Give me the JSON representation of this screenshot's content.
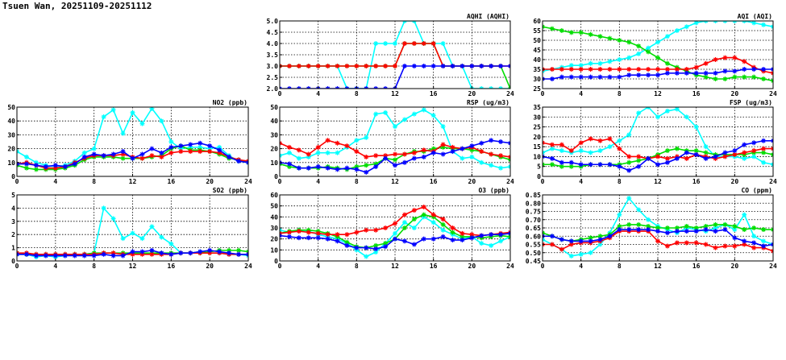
{
  "page": {
    "title": "Tsuen Wan, 20251109-20251112"
  },
  "series_colors": {
    "a": "#00ffff",
    "b": "#00dd00",
    "c": "#ff0000",
    "d": "#0000ff"
  },
  "chart_data": [
    {
      "id": "aqhi",
      "type": "line",
      "title": "AQHI (AQHI)",
      "xlim": [
        0,
        24
      ],
      "xticks": [
        0,
        4,
        8,
        12,
        16,
        20,
        24
      ],
      "ylim": [
        2,
        5
      ],
      "yticks": [
        2.0,
        2.5,
        3.0,
        3.5,
        4.0,
        4.5,
        5.0
      ],
      "ydec": 1,
      "grid": true,
      "series": [
        {
          "color_key": "a",
          "values": [
            3,
            3,
            3,
            3,
            3,
            3,
            3,
            2,
            2,
            2,
            4,
            4,
            4,
            5,
            5,
            4,
            4,
            4,
            3,
            3,
            2,
            2,
            2,
            2,
            2
          ]
        },
        {
          "color_key": "b",
          "values": [
            3,
            3,
            3,
            3,
            3,
            3,
            3,
            3,
            3,
            3,
            3,
            3,
            3,
            4,
            4,
            4,
            4,
            3,
            3,
            3,
            3,
            3,
            3,
            3,
            2
          ]
        },
        {
          "color_key": "c",
          "values": [
            3,
            3,
            3,
            3,
            3,
            3,
            3,
            3,
            3,
            3,
            3,
            3,
            3,
            4,
            4,
            4,
            4,
            3,
            3,
            3,
            3,
            3,
            3,
            3,
            3
          ]
        },
        {
          "color_key": "d",
          "values": [
            2,
            2,
            2,
            2,
            2,
            2,
            2,
            2,
            2,
            2,
            2,
            2,
            2,
            3,
            3,
            3,
            3,
            3,
            3,
            3,
            3,
            3,
            3,
            3,
            3
          ]
        }
      ]
    },
    {
      "id": "aqi",
      "type": "line",
      "title": "AQI (AQI)",
      "xlim": [
        0,
        24
      ],
      "xticks": [
        0,
        4,
        8,
        12,
        16,
        20,
        24
      ],
      "ylim": [
        25,
        60
      ],
      "yticks": [
        25,
        30,
        35,
        40,
        45,
        50,
        55,
        60
      ],
      "ydec": 0,
      "grid": true,
      "series": [
        {
          "color_key": "a",
          "values": [
            34,
            35,
            36,
            37,
            37,
            38,
            38,
            39,
            40,
            41,
            43,
            46,
            49,
            52,
            55,
            57,
            59,
            60,
            60,
            60,
            60,
            60,
            59,
            58,
            57
          ]
        },
        {
          "color_key": "b",
          "values": [
            57,
            56,
            55,
            54,
            54,
            53,
            52,
            51,
            50,
            49,
            47,
            44,
            41,
            38,
            36,
            34,
            32,
            31,
            30,
            30,
            31,
            31,
            31,
            30,
            29
          ]
        },
        {
          "color_key": "c",
          "values": [
            35,
            35,
            35,
            35,
            35,
            35,
            35,
            35,
            35,
            35,
            35,
            35,
            35,
            35,
            35,
            35,
            36,
            38,
            40,
            41,
            41,
            39,
            36,
            34,
            33
          ]
        },
        {
          "color_key": "d",
          "values": [
            30,
            30,
            31,
            31,
            31,
            31,
            31,
            31,
            31,
            32,
            32,
            32,
            32,
            33,
            33,
            33,
            33,
            33,
            33,
            34,
            34,
            35,
            35,
            35,
            35
          ]
        }
      ]
    },
    {
      "id": "no2",
      "type": "line",
      "title": "NO2 (ppb)",
      "xlim": [
        0,
        24
      ],
      "xticks": [
        0,
        4,
        8,
        12,
        16,
        20,
        24
      ],
      "ylim": [
        0,
        50
      ],
      "yticks": [
        0,
        10,
        20,
        30,
        40,
        50
      ],
      "ydec": 0,
      "grid": true,
      "series": [
        {
          "color_key": "a",
          "values": [
            18,
            14,
            10,
            8,
            7,
            8,
            11,
            17,
            20,
            43,
            48,
            31,
            46,
            38,
            49,
            40,
            25,
            20,
            21,
            21,
            20,
            21,
            15,
            11,
            10
          ]
        },
        {
          "color_key": "b",
          "values": [
            8,
            6,
            5,
            5,
            5,
            6,
            8,
            12,
            14,
            14,
            14,
            13,
            13,
            13,
            14,
            15,
            20,
            22,
            19,
            19,
            18,
            16,
            13,
            12,
            10
          ]
        },
        {
          "color_key": "c",
          "values": [
            9,
            10,
            8,
            6,
            6,
            7,
            10,
            13,
            15,
            15,
            15,
            16,
            14,
            13,
            15,
            14,
            17,
            18,
            18,
            18,
            18,
            17,
            14,
            12,
            11
          ]
        },
        {
          "color_key": "d",
          "values": [
            9,
            9,
            8,
            7,
            8,
            7,
            9,
            14,
            16,
            15,
            16,
            18,
            13,
            16,
            20,
            17,
            21,
            22,
            23,
            24,
            22,
            19,
            14,
            11,
            10
          ]
        }
      ]
    },
    {
      "id": "rsp",
      "type": "line",
      "title": "RSP (ug/m3)",
      "xlim": [
        0,
        24
      ],
      "xticks": [
        0,
        4,
        8,
        12,
        16,
        20,
        24
      ],
      "ylim": [
        0,
        50
      ],
      "yticks": [
        0,
        10,
        20,
        30,
        40,
        50
      ],
      "ydec": 0,
      "grid": true,
      "series": [
        {
          "color_key": "a",
          "values": [
            15,
            17,
            13,
            14,
            17,
            17,
            17,
            21,
            26,
            28,
            45,
            46,
            36,
            41,
            45,
            48,
            44,
            36,
            18,
            13,
            14,
            10,
            8,
            6,
            7
          ]
        },
        {
          "color_key": "b",
          "values": [
            9,
            7,
            6,
            6,
            6,
            7,
            6,
            5,
            7,
            8,
            9,
            13,
            12,
            16,
            18,
            18,
            20,
            21,
            20,
            20,
            19,
            18,
            16,
            14,
            12
          ]
        },
        {
          "color_key": "c",
          "values": [
            24,
            21,
            19,
            16,
            21,
            26,
            24,
            22,
            18,
            14,
            15,
            15,
            16,
            16,
            17,
            19,
            18,
            23,
            21,
            20,
            21,
            18,
            16,
            15,
            14
          ]
        },
        {
          "color_key": "d",
          "values": [
            10,
            9,
            6,
            6,
            7,
            6,
            5,
            6,
            5,
            3,
            7,
            13,
            8,
            10,
            13,
            14,
            17,
            16,
            18,
            20,
            22,
            24,
            26,
            25,
            24
          ]
        }
      ]
    },
    {
      "id": "fsp",
      "type": "line",
      "title": "FSP (ug/m3)",
      "xlim": [
        0,
        24
      ],
      "xticks": [
        0,
        4,
        8,
        12,
        16,
        20,
        24
      ],
      "ylim": [
        0,
        35
      ],
      "yticks": [
        0,
        5,
        10,
        15,
        20,
        25,
        30,
        35
      ],
      "ydec": 0,
      "grid": true,
      "series": [
        {
          "color_key": "a",
          "values": [
            12,
            14,
            13,
            12,
            13,
            12,
            13,
            15,
            18,
            21,
            32,
            35,
            30,
            33,
            34,
            30,
            25,
            15,
            10,
            10,
            10,
            9,
            10,
            7,
            6
          ]
        },
        {
          "color_key": "b",
          "values": [
            6,
            6,
            5,
            5,
            5,
            6,
            6,
            6,
            6,
            7,
            8,
            9,
            11,
            13,
            14,
            13,
            13,
            12,
            11,
            11,
            11,
            11,
            12,
            12,
            11
          ]
        },
        {
          "color_key": "c",
          "values": [
            17,
            16,
            16,
            13,
            17,
            19,
            18,
            19,
            14,
            10,
            10,
            9,
            10,
            9,
            10,
            9,
            11,
            10,
            9,
            10,
            11,
            12,
            13,
            14,
            14
          ]
        },
        {
          "color_key": "d",
          "values": [
            10,
            9,
            7,
            7,
            6,
            6,
            6,
            6,
            5,
            3,
            5,
            9,
            6,
            7,
            9,
            12,
            11,
            9,
            10,
            12,
            13,
            16,
            17,
            18,
            18
          ]
        }
      ]
    },
    {
      "id": "so2",
      "type": "line",
      "title": "SO2 (ppb)",
      "xlim": [
        0,
        24
      ],
      "xticks": [
        0,
        4,
        8,
        12,
        16,
        20,
        24
      ],
      "ylim": [
        0,
        5
      ],
      "yticks": [
        0,
        1,
        2,
        3,
        4,
        5
      ],
      "ydec": 0,
      "grid": true,
      "series": [
        {
          "color_key": "a",
          "values": [
            0.5,
            0.5,
            0.3,
            0.4,
            0.3,
            0.4,
            0.5,
            0.5,
            0.6,
            4.0,
            3.2,
            1.7,
            2.1,
            1.7,
            2.6,
            1.8,
            1.3,
            0.6,
            0.6,
            0.7,
            0.6,
            0.6,
            0.5,
            0.5,
            0.4
          ]
        },
        {
          "color_key": "b",
          "values": [
            0.6,
            0.5,
            0.5,
            0.5,
            0.5,
            0.5,
            0.5,
            0.5,
            0.6,
            0.6,
            0.6,
            0.6,
            0.6,
            0.6,
            0.6,
            0.6,
            0.6,
            0.6,
            0.6,
            0.6,
            0.7,
            0.8,
            0.8,
            0.8,
            0.7
          ]
        },
        {
          "color_key": "c",
          "values": [
            0.6,
            0.6,
            0.5,
            0.5,
            0.5,
            0.5,
            0.5,
            0.5,
            0.5,
            0.6,
            0.6,
            0.5,
            0.5,
            0.5,
            0.5,
            0.5,
            0.5,
            0.6,
            0.6,
            0.6,
            0.6,
            0.6,
            0.5,
            0.5,
            0.5
          ]
        },
        {
          "color_key": "d",
          "values": [
            0.5,
            0.5,
            0.4,
            0.4,
            0.4,
            0.4,
            0.4,
            0.4,
            0.4,
            0.5,
            0.4,
            0.4,
            0.7,
            0.7,
            0.8,
            0.6,
            0.5,
            0.6,
            0.6,
            0.7,
            0.8,
            0.7,
            0.6,
            0.5,
            0.5
          ]
        }
      ]
    },
    {
      "id": "o3",
      "type": "line",
      "title": "O3 (ppb)",
      "xlim": [
        0,
        24
      ],
      "xticks": [
        0,
        4,
        8,
        12,
        16,
        20,
        24
      ],
      "ylim": [
        0,
        60
      ],
      "yticks": [
        0,
        10,
        20,
        30,
        40,
        50,
        60
      ],
      "ydec": 0,
      "grid": true,
      "series": [
        {
          "color_key": "a",
          "values": [
            28,
            26,
            28,
            27,
            24,
            22,
            20,
            16,
            10,
            4,
            8,
            16,
            25,
            35,
            30,
            40,
            35,
            28,
            24,
            20,
            22,
            16,
            14,
            18,
            22
          ]
        },
        {
          "color_key": "b",
          "values": [
            25,
            27,
            28,
            28,
            27,
            25,
            22,
            17,
            13,
            12,
            14,
            16,
            20,
            30,
            38,
            42,
            40,
            33,
            26,
            22,
            22,
            21,
            22,
            23,
            22
          ]
        },
        {
          "color_key": "c",
          "values": [
            25,
            26,
            27,
            26,
            25,
            24,
            24,
            24,
            26,
            28,
            28,
            30,
            34,
            42,
            46,
            49,
            42,
            38,
            30,
            25,
            24,
            23,
            24,
            25,
            26
          ]
        },
        {
          "color_key": "d",
          "values": [
            23,
            22,
            21,
            21,
            21,
            20,
            18,
            14,
            12,
            12,
            11,
            13,
            20,
            18,
            15,
            20,
            20,
            22,
            19,
            19,
            21,
            23,
            24,
            24,
            25
          ]
        }
      ]
    },
    {
      "id": "co",
      "type": "line",
      "title": "CO (ppm)",
      "xlim": [
        0,
        24
      ],
      "xticks": [
        0,
        4,
        8,
        12,
        16,
        20,
        24
      ],
      "ylim": [
        0.45,
        0.85
      ],
      "yticks": [
        0.45,
        0.5,
        0.55,
        0.6,
        0.65,
        0.7,
        0.75,
        0.8,
        0.85
      ],
      "ydec": 2,
      "grid": true,
      "series": [
        {
          "color_key": "a",
          "values": [
            0.58,
            0.55,
            0.52,
            0.48,
            0.49,
            0.5,
            0.55,
            0.62,
            0.73,
            0.83,
            0.76,
            0.7,
            0.66,
            0.64,
            0.62,
            0.65,
            0.64,
            0.63,
            0.65,
            0.67,
            0.64,
            0.73,
            0.6,
            0.57,
            0.55
          ]
        },
        {
          "color_key": "b",
          "values": [
            0.62,
            0.6,
            0.58,
            0.57,
            0.58,
            0.59,
            0.6,
            0.61,
            0.66,
            0.67,
            0.67,
            0.66,
            0.65,
            0.65,
            0.65,
            0.66,
            0.65,
            0.66,
            0.67,
            0.67,
            0.66,
            0.64,
            0.65,
            0.64,
            0.64
          ]
        },
        {
          "color_key": "c",
          "values": [
            0.55,
            0.55,
            0.52,
            0.55,
            0.56,
            0.56,
            0.57,
            0.59,
            0.63,
            0.63,
            0.63,
            0.63,
            0.57,
            0.54,
            0.56,
            0.56,
            0.56,
            0.55,
            0.53,
            0.54,
            0.54,
            0.55,
            0.53,
            0.53,
            0.51
          ]
        },
        {
          "color_key": "d",
          "values": [
            0.6,
            0.6,
            0.58,
            0.57,
            0.57,
            0.57,
            0.58,
            0.6,
            0.64,
            0.64,
            0.64,
            0.64,
            0.63,
            0.62,
            0.63,
            0.63,
            0.63,
            0.64,
            0.63,
            0.64,
            0.59,
            0.57,
            0.56,
            0.54,
            0.55
          ]
        }
      ]
    }
  ]
}
